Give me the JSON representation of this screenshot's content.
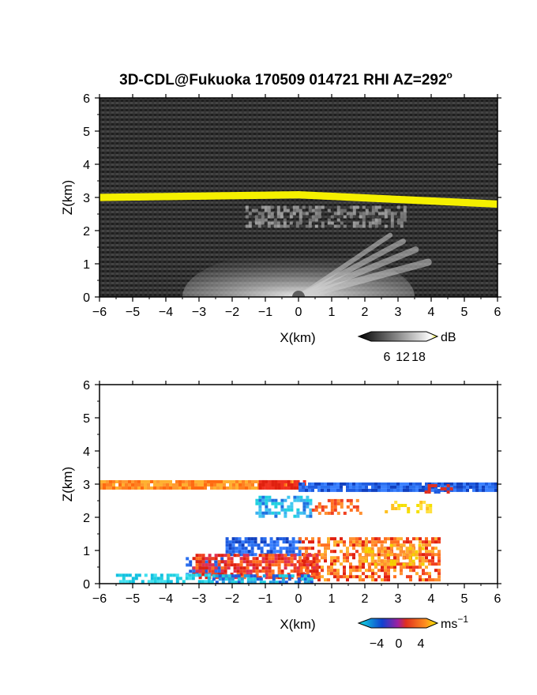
{
  "title": "3D-CDL@Fukuoka 170509 014721 RHI AZ=292",
  "title_superscript": "o",
  "chart_data": [
    {
      "type": "heatmap",
      "name": "reflectivity",
      "xlabel": "X(km)",
      "ylabel": "Z(km)",
      "xlim": [
        -6,
        6
      ],
      "ylim": [
        0,
        6
      ],
      "xticks": [
        "-6",
        "-5",
        "-4",
        "-3",
        "-2",
        "-1",
        "0",
        "1",
        "2",
        "3",
        "4",
        "5",
        "6"
      ],
      "yticks": [
        "0",
        "1",
        "2",
        "3",
        "4",
        "5",
        "6"
      ],
      "background_color": "#3a3a3a",
      "layers": [
        {
          "feature": "cloud-base band",
          "x": [
            -6,
            6
          ],
          "z_left": 3.0,
          "z_center": 3.08,
          "z_right": 2.8,
          "thickness_km": 0.22,
          "color": "#f5f000"
        },
        {
          "feature": "upper echo layer",
          "x": [
            -1.5,
            3
          ],
          "z": [
            2.2,
            2.7
          ],
          "color": "#9a9a9a"
        },
        {
          "feature": "fan of radial echoes",
          "x": [
            -4,
            3.5
          ],
          "z": [
            0,
            1.5
          ],
          "color": "#d8d8d8"
        }
      ],
      "colorbar": {
        "unit": "dB",
        "ticks": [
          "6",
          "12",
          "18"
        ],
        "range": [
          0,
          21
        ],
        "colors": [
          "#000000",
          "#ffffff",
          "#f5f000"
        ]
      }
    },
    {
      "type": "heatmap",
      "name": "doppler-velocity",
      "xlabel": "X(km)",
      "ylabel": "Z(km)",
      "xlim": [
        -6,
        6
      ],
      "ylim": [
        0,
        6
      ],
      "xticks": [
        "-6",
        "-5",
        "-4",
        "-3",
        "-2",
        "-1",
        "0",
        "1",
        "2",
        "3",
        "4",
        "5",
        "6"
      ],
      "yticks": [
        "0",
        "1",
        "2",
        "3",
        "4",
        "5",
        "6"
      ],
      "background_color": "#ffffff",
      "layers": [
        {
          "feature": "cloud-base band (receding)",
          "x": [
            -6,
            0
          ],
          "z": 3.0,
          "color": "#ff7a1a"
        },
        {
          "feature": "cloud-base band (approaching)",
          "x": [
            0,
            6
          ],
          "z": 2.9,
          "color": "#1e5be0"
        },
        {
          "feature": "upper echoes",
          "x": [
            -1.3,
            4
          ],
          "z": [
            2.0,
            2.6
          ],
          "color": "#40c8f0"
        },
        {
          "feature": "lower echo mass",
          "x": [
            -3.5,
            4.2
          ],
          "z": [
            0.1,
            1.5
          ],
          "color": "#f04020"
        },
        {
          "feature": "near-ground layer",
          "x": [
            -5.5,
            0.5
          ],
          "z": [
            0,
            0.3
          ],
          "color": "#20d0e0"
        }
      ],
      "colorbar": {
        "unit": "ms",
        "unit_exponent": "−1",
        "ticks": [
          "−4",
          "0",
          "4"
        ],
        "range": [
          -5,
          5
        ],
        "colors": [
          "#10e0e0",
          "#1040d0",
          "#e03020",
          "#ff9020",
          "#f5f000"
        ]
      }
    }
  ]
}
